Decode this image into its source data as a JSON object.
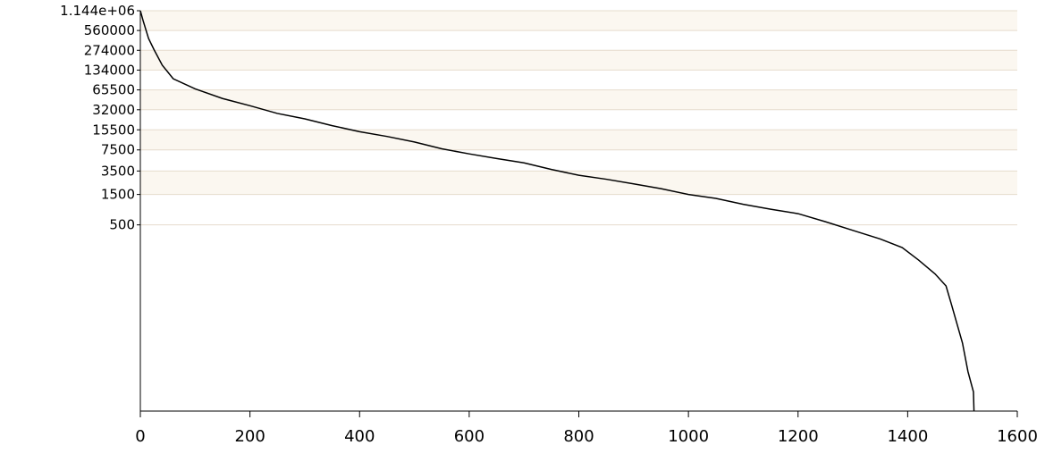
{
  "chart_data": {
    "type": "line",
    "title": "",
    "xlabel": "",
    "ylabel": "",
    "xlim": [
      0,
      1600
    ],
    "y_scale": "log",
    "ylim": [
      0.6,
      1144000
    ],
    "grid": "horizontal",
    "colors": {
      "line": "#000000",
      "grid": "#e6dccd",
      "band": "#fbf7f0",
      "axis": "#000000"
    },
    "x_ticks": [
      0,
      200,
      400,
      600,
      800,
      1000,
      1200,
      1400,
      1600
    ],
    "x_tick_labels": [
      "0",
      "200",
      "400",
      "600",
      "800",
      "1000",
      "1200",
      "1400",
      "1600"
    ],
    "y_ticks": [
      1144000,
      560000,
      274000,
      134000,
      65500,
      32000,
      15500,
      7500,
      3500,
      1500,
      500
    ],
    "y_tick_labels": [
      "1.144e+06",
      "560000",
      "274000",
      "134000",
      "65500",
      "32000",
      "15500",
      "7500",
      "3500",
      "1500",
      "500"
    ],
    "series": [
      {
        "name": "",
        "x": [
          0,
          5,
          15,
          25,
          40,
          60,
          100,
          150,
          200,
          250,
          300,
          350,
          400,
          450,
          500,
          550,
          600,
          650,
          700,
          750,
          800,
          850,
          900,
          950,
          1000,
          1050,
          1100,
          1150,
          1200,
          1250,
          1300,
          1350,
          1390,
          1420,
          1450,
          1470,
          1480,
          1490,
          1500,
          1510,
          1520,
          1521
        ],
        "y": [
          1144000,
          800000,
          420000,
          280000,
          160000,
          98000,
          68000,
          48000,
          37000,
          28000,
          23000,
          18000,
          14500,
          12200,
          10000,
          7800,
          6500,
          5500,
          4700,
          3700,
          3000,
          2600,
          2200,
          1850,
          1500,
          1300,
          1050,
          880,
          750,
          560,
          410,
          300,
          220,
          140,
          85,
          55,
          28,
          14,
          7,
          2.5,
          1.2,
          0.6
        ]
      }
    ]
  }
}
